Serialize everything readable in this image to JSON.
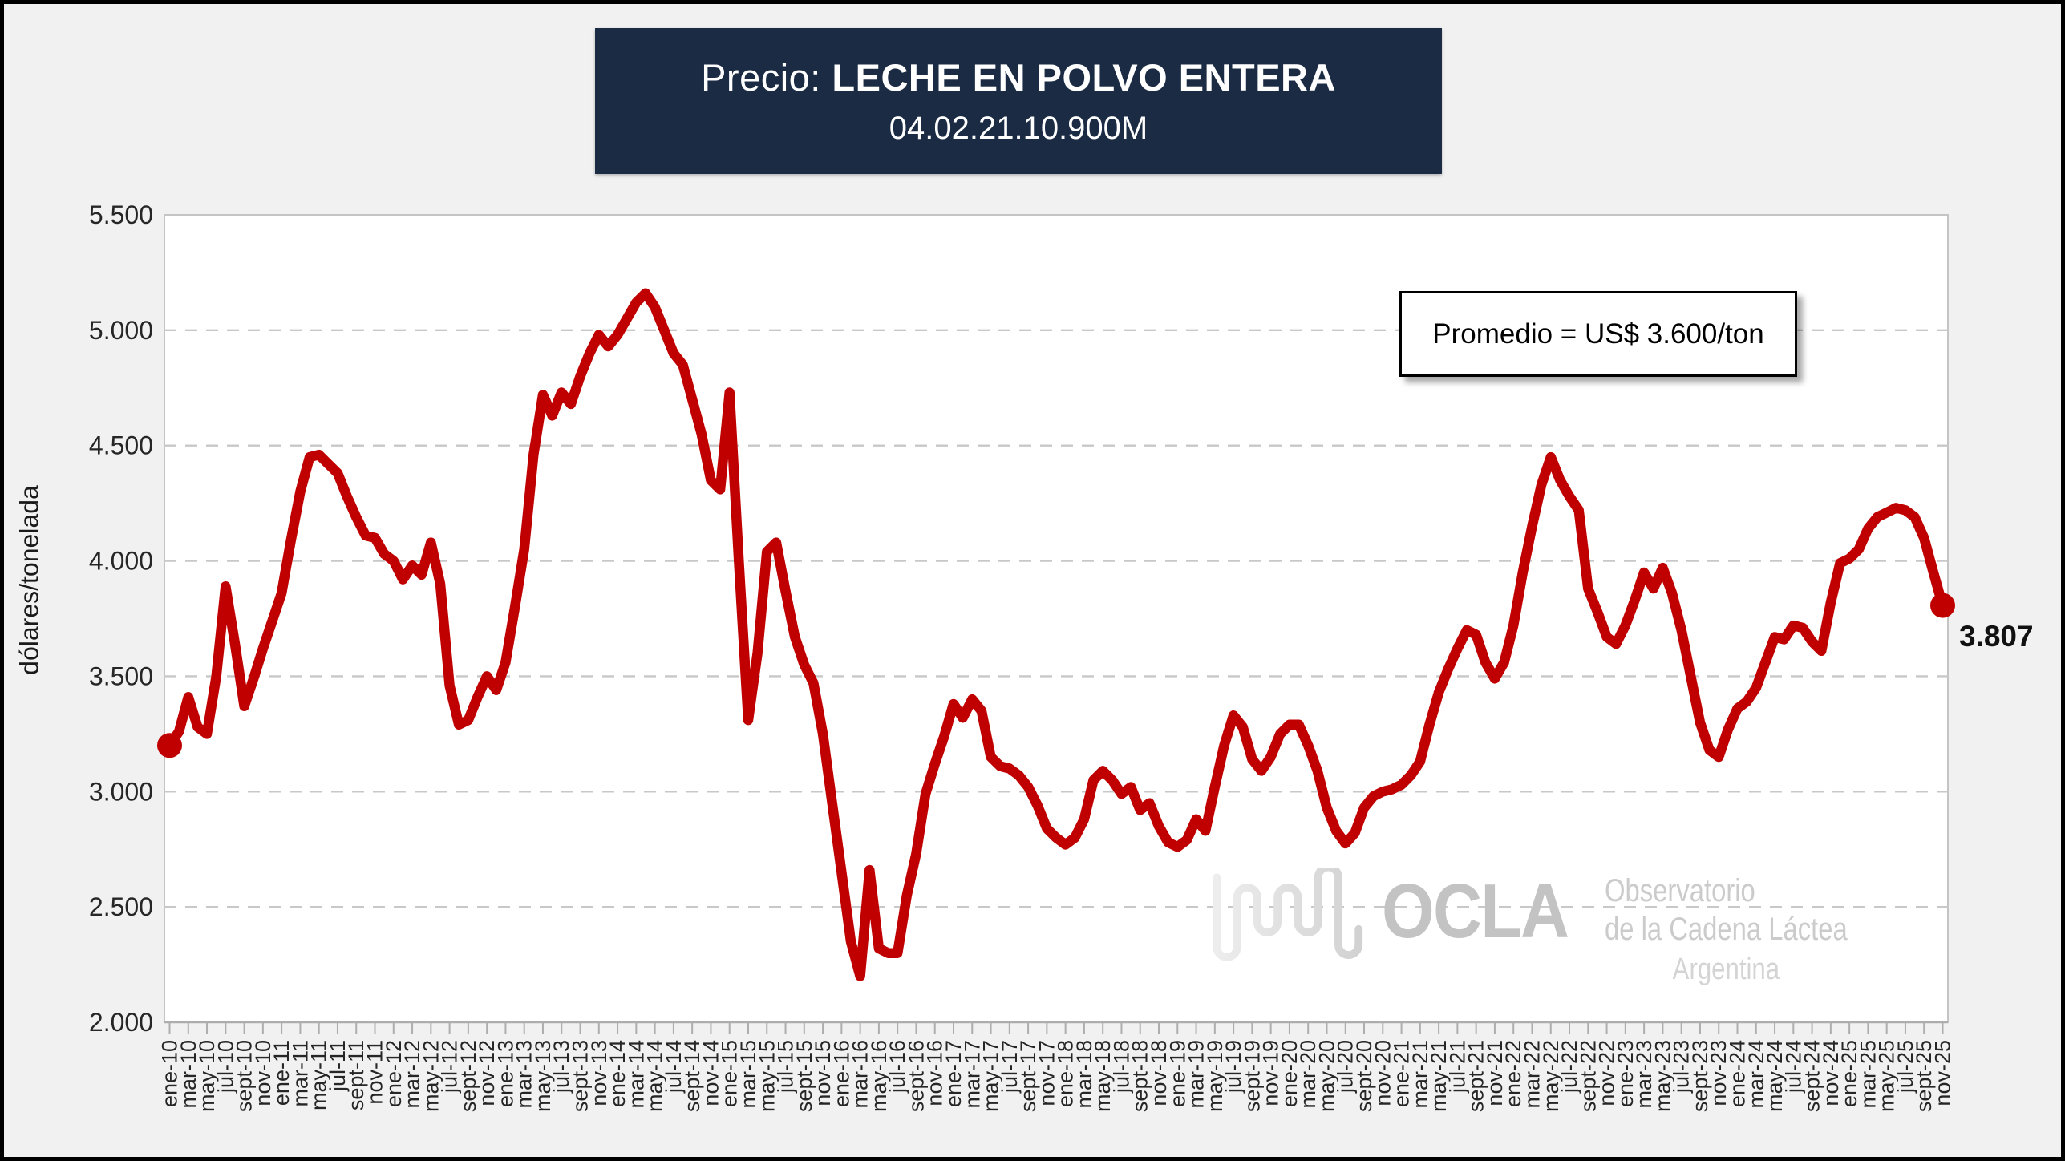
{
  "header": {
    "title_prefix": "Precio:",
    "title_main": "LECHE EN POLVO ENTERA",
    "subtitle": "04.02.21.10.900M",
    "bg_color": "#1B2B44"
  },
  "annotation": {
    "average_text": "Promedio = US$ 3.600/ton"
  },
  "end_point_label": "3.807",
  "watermark": {
    "acronym": "OCLA",
    "line1": "Observatorio",
    "line2": "de la Cadena Láctea",
    "line3": "Argentina"
  },
  "chart_data": {
    "type": "line",
    "title": "Precio: LECHE EN POLVO ENTERA 04.02.21.10.900M",
    "ylabel": "dólares/tonelada",
    "ylim": [
      2000,
      5500
    ],
    "ytick_labels": [
      "5.500",
      "5.000",
      "4.500",
      "4.000",
      "3.500",
      "3.000",
      "2.500",
      "2.000"
    ],
    "ytick_values": [
      5500,
      5000,
      4500,
      4000,
      3500,
      3000,
      2500,
      2000
    ],
    "grid": "horizontal-dashed",
    "legend": "none",
    "series_name": "Precio leche en polvo entera (US$/ton)",
    "series_color": "#C00000",
    "x_start": "ene-10",
    "x_end": "nov-25",
    "x_frequency": "monthly",
    "x_tick_labels": [
      "ene-10",
      "mar-10",
      "may-10",
      "jul-10",
      "sept-10",
      "nov-10",
      "ene-11",
      "mar-11",
      "may-11",
      "jul-11",
      "sept-11",
      "nov-11",
      "ene-12",
      "mar-12",
      "may-12",
      "jul-12",
      "sept-12",
      "nov-12",
      "ene-13",
      "mar-13",
      "may-13",
      "jul-13",
      "sept-13",
      "nov-13",
      "ene-14",
      "mar-14",
      "may-14",
      "jul-14",
      "sept-14",
      "nov-14",
      "ene-15",
      "mar-15",
      "may-15",
      "jul-15",
      "sept-15",
      "nov-15",
      "ene-16",
      "mar-16",
      "may-16",
      "jul-16",
      "sept-16",
      "nov-16",
      "ene-17",
      "mar-17",
      "may-17",
      "jul-17",
      "sept-17",
      "nov-17",
      "ene-18",
      "mar-18",
      "may-18",
      "jul-18",
      "sept-18",
      "nov-18",
      "ene-19",
      "mar-19",
      "may-19",
      "jul-19",
      "sept-19",
      "nov-19",
      "ene-20",
      "mar-20",
      "may-20",
      "jul-20",
      "sept-20",
      "nov-20",
      "ene-21",
      "mar-21",
      "may-21",
      "jul-21",
      "sept-21",
      "nov-21",
      "ene-22",
      "mar-22",
      "may-22",
      "jul-22",
      "sept-22",
      "nov-22",
      "ene-23",
      "mar-23",
      "may-23",
      "jul-23",
      "sept-23",
      "nov-23",
      "ene-24",
      "mar-24",
      "may-24",
      "jul-24",
      "sept-24",
      "nov-24",
      "ene-25",
      "mar-25",
      "may-25",
      "jul-25",
      "sept-25",
      "nov-25"
    ],
    "values": [
      3200,
      3260,
      3410,
      3280,
      3250,
      3500,
      3890,
      3640,
      3370,
      3490,
      3620,
      3740,
      3860,
      4090,
      4300,
      4450,
      4460,
      4420,
      4380,
      4280,
      4190,
      4110,
      4100,
      4030,
      4000,
      3920,
      3980,
      3940,
      4080,
      3900,
      3460,
      3290,
      3310,
      3410,
      3500,
      3440,
      3560,
      3800,
      4050,
      4460,
      4720,
      4630,
      4730,
      4680,
      4800,
      4900,
      4980,
      4930,
      4980,
      5050,
      5120,
      5160,
      5100,
      5000,
      4900,
      4850,
      4700,
      4550,
      4350,
      4310,
      4730,
      4000,
      3310,
      3600,
      4040,
      4080,
      3870,
      3670,
      3550,
      3470,
      3250,
      2950,
      2650,
      2350,
      2200,
      2660,
      2320,
      2300,
      2300,
      2550,
      2730,
      2990,
      3120,
      3240,
      3380,
      3320,
      3400,
      3350,
      3150,
      3110,
      3100,
      3070,
      3020,
      2940,
      2840,
      2800,
      2770,
      2800,
      2880,
      3050,
      3090,
      3050,
      2990,
      3020,
      2920,
      2950,
      2850,
      2780,
      2760,
      2790,
      2880,
      2830,
      3020,
      3200,
      3330,
      3280,
      3140,
      3090,
      3150,
      3250,
      3290,
      3290,
      3200,
      3090,
      2930,
      2830,
      2775,
      2820,
      2930,
      2980,
      3000,
      3010,
      3030,
      3070,
      3130,
      3290,
      3430,
      3530,
      3620,
      3700,
      3680,
      3560,
      3490,
      3560,
      3720,
      3950,
      4150,
      4330,
      4450,
      4350,
      4280,
      4220,
      3880,
      3780,
      3670,
      3640,
      3720,
      3830,
      3950,
      3880,
      3970,
      3860,
      3700,
      3500,
      3300,
      3180,
      3150,
      3270,
      3360,
      3390,
      3450,
      3560,
      3670,
      3660,
      3720,
      3710,
      3650,
      3610,
      3820,
      3990,
      4010,
      4050,
      4140,
      4190,
      4210,
      4230,
      4220,
      4190,
      4100,
      3950,
      3807
    ],
    "last_value": 3807,
    "last_value_label": "3.807",
    "average_value": 3600,
    "average_annotation": "Promedio = US$ 3.600/ton"
  },
  "style": {
    "background": "#F1F1F2",
    "plot_background": "#FFFFFF",
    "grid_color": "#C8C8C8",
    "axis_color": "#ADADAD",
    "text_color": "#262626",
    "line_color": "#C00000"
  }
}
